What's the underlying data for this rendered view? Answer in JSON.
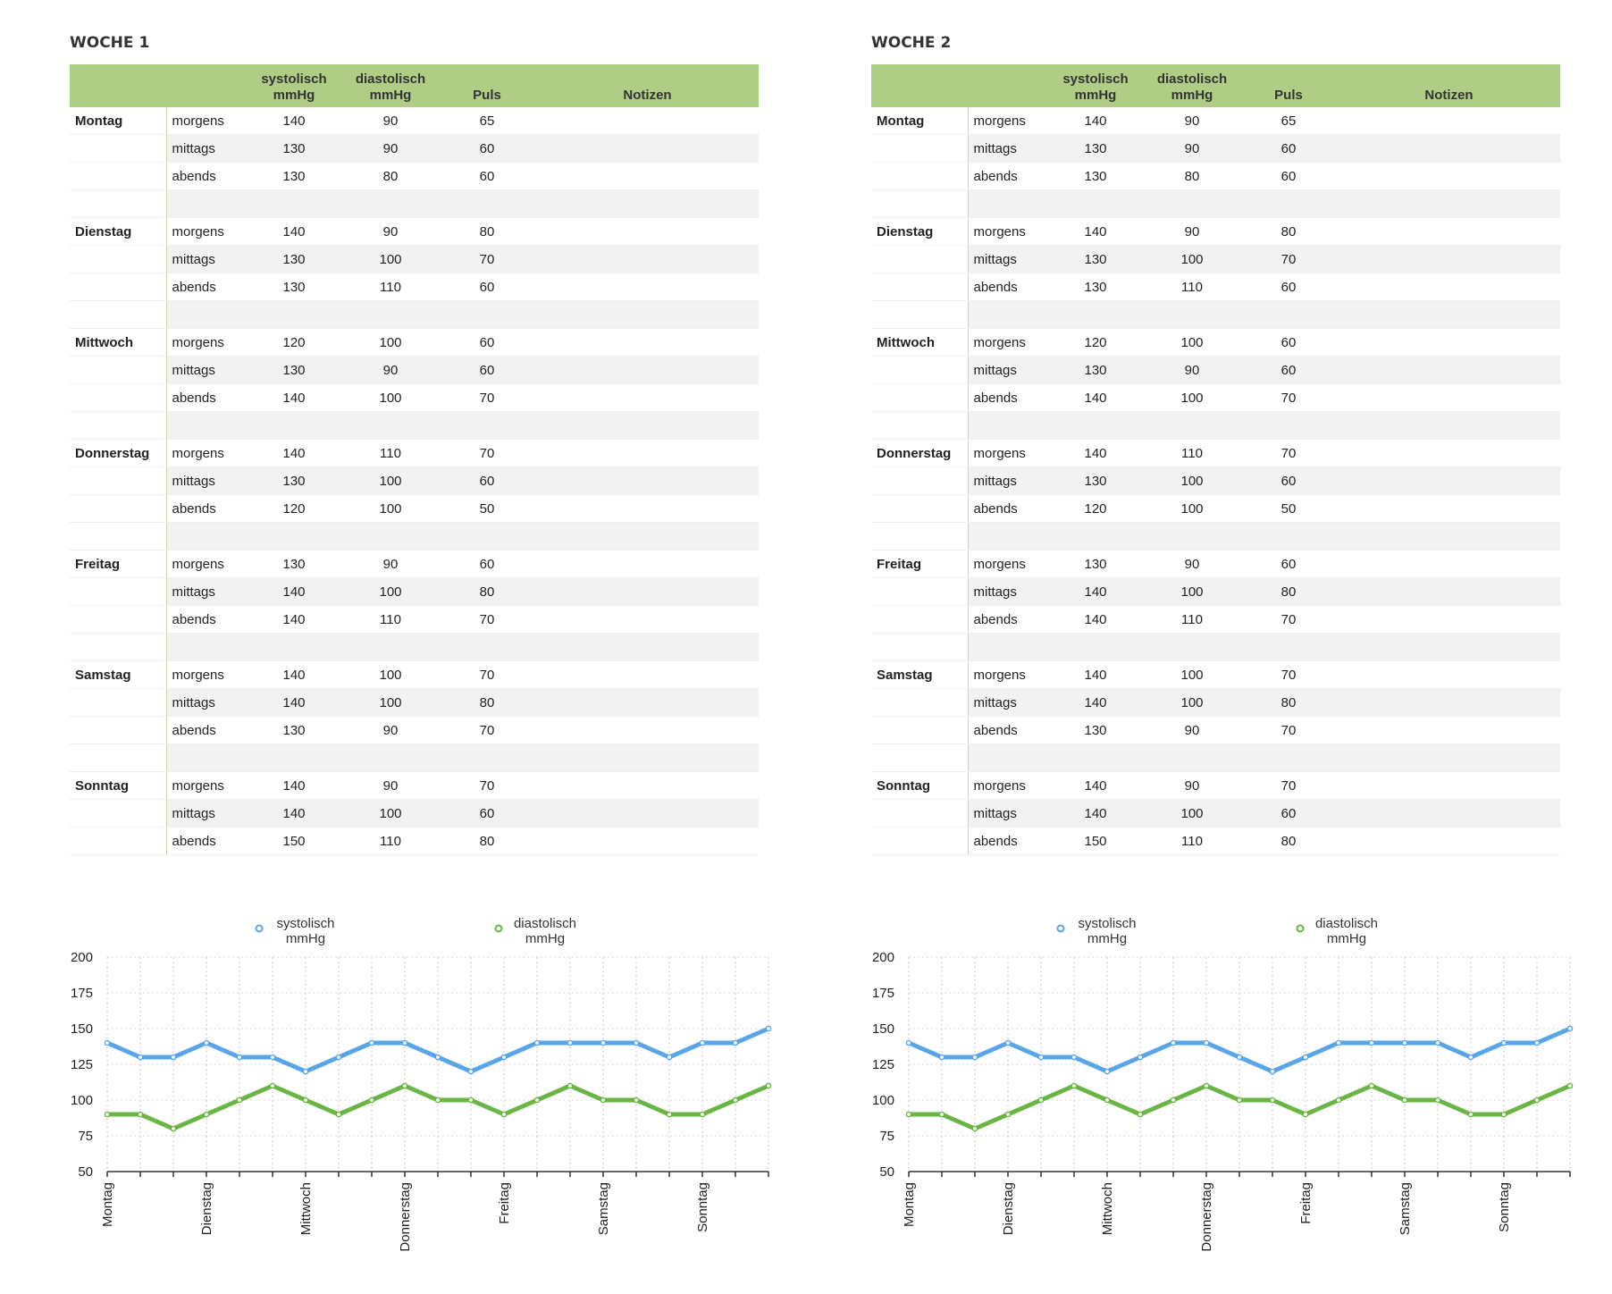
{
  "days": [
    "Montag",
    "Dienstag",
    "Mittwoch",
    "Donnerstag",
    "Freitag",
    "Samstag",
    "Sonntag"
  ],
  "times": [
    "morgens",
    "mittags",
    "abends"
  ],
  "headers": {
    "systolic": [
      "systolisch",
      "mmHg"
    ],
    "diastolic": [
      "diastolisch",
      "mmHg"
    ],
    "pulse": "Puls",
    "notes": "Notizen"
  },
  "colors": {
    "header_bg": "#b0cd86",
    "systolic": "#5aa5e8",
    "diastolic": "#6ab545"
  },
  "weeks": [
    {
      "title": "WOCHE 1",
      "readings": [
        [
          [
            140,
            90,
            65
          ],
          [
            130,
            90,
            60
          ],
          [
            130,
            80,
            60
          ]
        ],
        [
          [
            140,
            90,
            80
          ],
          [
            130,
            100,
            70
          ],
          [
            130,
            110,
            60
          ]
        ],
        [
          [
            120,
            100,
            60
          ],
          [
            130,
            90,
            60
          ],
          [
            140,
            100,
            70
          ]
        ],
        [
          [
            140,
            110,
            70
          ],
          [
            130,
            100,
            60
          ],
          [
            120,
            100,
            50
          ]
        ],
        [
          [
            130,
            90,
            60
          ],
          [
            140,
            100,
            80
          ],
          [
            140,
            110,
            70
          ]
        ],
        [
          [
            140,
            100,
            70
          ],
          [
            140,
            100,
            80
          ],
          [
            130,
            90,
            70
          ]
        ],
        [
          [
            140,
            90,
            70
          ],
          [
            140,
            100,
            60
          ],
          [
            150,
            110,
            80
          ]
        ]
      ]
    },
    {
      "title": "WOCHE 2",
      "readings": [
        [
          [
            140,
            90,
            65
          ],
          [
            130,
            90,
            60
          ],
          [
            130,
            80,
            60
          ]
        ],
        [
          [
            140,
            90,
            80
          ],
          [
            130,
            100,
            70
          ],
          [
            130,
            110,
            60
          ]
        ],
        [
          [
            120,
            100,
            60
          ],
          [
            130,
            90,
            60
          ],
          [
            140,
            100,
            70
          ]
        ],
        [
          [
            140,
            110,
            70
          ],
          [
            130,
            100,
            60
          ],
          [
            120,
            100,
            50
          ]
        ],
        [
          [
            130,
            90,
            60
          ],
          [
            140,
            100,
            80
          ],
          [
            140,
            110,
            70
          ]
        ],
        [
          [
            140,
            100,
            70
          ],
          [
            140,
            100,
            80
          ],
          [
            130,
            90,
            70
          ]
        ],
        [
          [
            140,
            90,
            70
          ],
          [
            140,
            100,
            60
          ],
          [
            150,
            110,
            80
          ]
        ]
      ]
    }
  ],
  "chart_data": [
    {
      "type": "line",
      "title": "",
      "x_tick_labels": [
        "Montag",
        "Dienstag",
        "Mittwoch",
        "Donnerstag",
        "Freitag",
        "Samstag",
        "Sonntag"
      ],
      "ylim": [
        50,
        200
      ],
      "yticks": [
        50,
        75,
        100,
        125,
        150,
        175,
        200
      ],
      "grid": true,
      "legend_position": "top",
      "series": [
        {
          "name": [
            "systolisch",
            "mmHg"
          ],
          "color": "#5aa5e8",
          "values": [
            140,
            130,
            130,
            140,
            130,
            130,
            120,
            130,
            140,
            140,
            130,
            120,
            130,
            140,
            140,
            140,
            140,
            130,
            140,
            140,
            150
          ]
        },
        {
          "name": [
            "diastolisch",
            "mmHg"
          ],
          "color": "#6ab545",
          "values": [
            90,
            90,
            80,
            90,
            100,
            110,
            100,
            90,
            100,
            110,
            100,
            100,
            90,
            100,
            110,
            100,
            100,
            90,
            90,
            100,
            110
          ]
        }
      ]
    },
    {
      "type": "line",
      "title": "",
      "x_tick_labels": [
        "Montag",
        "Dienstag",
        "Mittwoch",
        "Donnerstag",
        "Freitag",
        "Samstag",
        "Sonntag"
      ],
      "ylim": [
        50,
        200
      ],
      "yticks": [
        50,
        75,
        100,
        125,
        150,
        175,
        200
      ],
      "grid": true,
      "legend_position": "top",
      "series": [
        {
          "name": [
            "systolisch",
            "mmHg"
          ],
          "color": "#5aa5e8",
          "values": [
            140,
            130,
            130,
            140,
            130,
            130,
            120,
            130,
            140,
            140,
            130,
            120,
            130,
            140,
            140,
            140,
            140,
            130,
            140,
            140,
            150
          ]
        },
        {
          "name": [
            "diastolisch",
            "mmHg"
          ],
          "color": "#6ab545",
          "values": [
            90,
            90,
            80,
            90,
            100,
            110,
            100,
            90,
            100,
            110,
            100,
            100,
            90,
            100,
            110,
            100,
            100,
            90,
            90,
            100,
            110
          ]
        }
      ]
    }
  ]
}
